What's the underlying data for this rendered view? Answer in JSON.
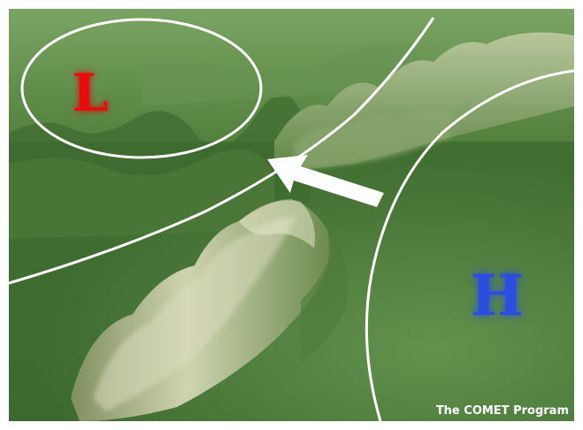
{
  "figure": {
    "low_label": "L",
    "high_label": "H",
    "credit": "The COMET Program"
  },
  "colors": {
    "low": "#e81010",
    "high": "#2a4fe0",
    "isobar": "#ffffff",
    "arrow": "#ffffff",
    "terrain_dark": "#2f5a24",
    "terrain_mid": "#5c8a45",
    "terrain_light": "#a9bf8a",
    "ridge_highlight": "#d2d6b6"
  },
  "icons": {
    "wind_arrow": "wind-arrow-icon"
  }
}
